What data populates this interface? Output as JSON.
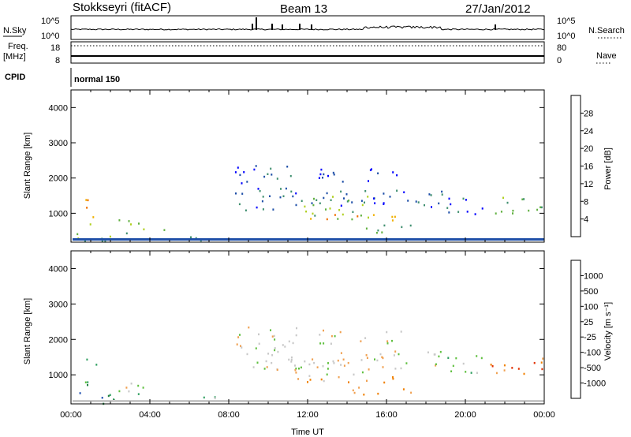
{
  "header": {
    "station": "Stokkseyri (fitACF)",
    "beam": "Beam 13",
    "date": "27/Jan/2012"
  },
  "strip": {
    "nsky_label": "N.Sky",
    "nsky_ticks": [
      "10^5",
      "10^0"
    ],
    "nsearch_label": "N.Search",
    "nsearch_ticks": [
      "10^5",
      "10^0"
    ],
    "freq_label_1": "Freq.",
    "freq_label_2": "[MHz]",
    "freq_ticks": [
      "18",
      "8"
    ],
    "nave_label": "Nave",
    "nave_ticks": [
      "80",
      "0"
    ],
    "cpid_label": "CPID",
    "cpid_value": "normal 150"
  },
  "colors": {
    "power": [
      "#0000ff",
      "#1f4fa8",
      "#3f8f6f",
      "#60b040",
      "#b0d020",
      "#f0b000",
      "#f07000",
      "#e00000"
    ],
    "velocity": [
      "#d00000",
      "#e03000",
      "#f08000",
      "#f0a050",
      "#c8c8c8",
      "#60c040",
      "#30a060",
      "#208040",
      "#2050b0",
      "#0020c0"
    ]
  },
  "chart_data": [
    {
      "type": "heatmap",
      "name": "power-panel",
      "ylabel": "Slant Range [km]",
      "yticks": [
        "1000",
        "2000",
        "3000",
        "4000"
      ],
      "xticks": [
        "00:00",
        "04:00",
        "08:00",
        "12:00",
        "16:00",
        "20:00",
        "00:00"
      ],
      "colorbar_label": "Power [dB]",
      "colorbar_ticks": [
        "4",
        "8",
        "12",
        "16",
        "20",
        "24",
        "28"
      ],
      "x_range_hours": [
        0,
        24
      ],
      "y_range_km": [
        180,
        4500
      ],
      "regions": [
        {
          "t0": 0.1,
          "t1": 2.3,
          "r0": 200,
          "r1": 600,
          "level": 3
        },
        {
          "t0": 0.7,
          "t1": 1.3,
          "r0": 700,
          "r1": 1700,
          "level": 5
        },
        {
          "t0": 2.3,
          "t1": 4.9,
          "r0": 650,
          "r1": 850,
          "level": 4
        },
        {
          "t0": 2.3,
          "t1": 4.9,
          "r0": 450,
          "r1": 580,
          "level": 3
        },
        {
          "t0": 5.0,
          "t1": 7.9,
          "r0": 250,
          "r1": 400,
          "level": 2
        },
        {
          "t0": 8.3,
          "t1": 11.5,
          "r0": 1100,
          "r1": 2400,
          "level": 1
        },
        {
          "t0": 11.0,
          "t1": 15.5,
          "r0": 850,
          "r1": 1500,
          "level": 3
        },
        {
          "t0": 11.0,
          "t1": 16.5,
          "r0": 800,
          "r1": 1000,
          "level": 5
        },
        {
          "t0": 14.0,
          "t1": 17.5,
          "r0": 450,
          "r1": 700,
          "level": 3
        },
        {
          "t0": 12.0,
          "t1": 19.0,
          "r0": 1200,
          "r1": 1700,
          "level": 1
        },
        {
          "t0": 12.5,
          "t1": 17.0,
          "r0": 1900,
          "r1": 2300,
          "level": 0
        },
        {
          "t0": 19.0,
          "t1": 21.0,
          "r0": 1000,
          "r1": 1600,
          "level": 1
        },
        {
          "t0": 21.0,
          "t1": 23.9,
          "r0": 1000,
          "r1": 1500,
          "level": 3
        }
      ]
    },
    {
      "type": "heatmap",
      "name": "velocity-panel",
      "ylabel": "Slant Range [km]",
      "yticks": [
        "1000",
        "2000",
        "3000",
        "4000"
      ],
      "xticks": [
        "00:00",
        "04:00",
        "08:00",
        "12:00",
        "16:00",
        "20:00",
        "00:00"
      ],
      "xlabel": "Time UT",
      "colorbar_label": "Velocity [m s⁻¹]",
      "colorbar_ticks": [
        "-1000",
        "-500",
        "-100",
        "-25",
        "25",
        "100",
        "500",
        "1000"
      ],
      "x_range_hours": [
        0,
        24
      ],
      "y_range_km": [
        180,
        4500
      ],
      "regions": [
        {
          "t0": 0.1,
          "t1": 2.3,
          "r0": 200,
          "r1": 600,
          "level": 7
        },
        {
          "t0": 0.7,
          "t1": 1.3,
          "r0": 700,
          "r1": 1700,
          "level": 6
        },
        {
          "t0": 2.3,
          "t1": 4.9,
          "r0": 650,
          "r1": 850,
          "level": 4
        },
        {
          "t0": 2.3,
          "t1": 4.9,
          "r0": 450,
          "r1": 580,
          "level": 5
        },
        {
          "t0": 5.0,
          "t1": 7.9,
          "r0": 250,
          "r1": 400,
          "level": 5
        },
        {
          "t0": 8.3,
          "t1": 11.5,
          "r0": 1100,
          "r1": 2400,
          "level": 4
        },
        {
          "t0": 11.0,
          "t1": 15.5,
          "r0": 850,
          "r1": 1500,
          "level": 4
        },
        {
          "t0": 11.0,
          "t1": 16.5,
          "r0": 800,
          "r1": 1000,
          "level": 2
        },
        {
          "t0": 14.0,
          "t1": 17.5,
          "r0": 450,
          "r1": 700,
          "level": 2
        },
        {
          "t0": 12.0,
          "t1": 19.0,
          "r0": 1200,
          "r1": 1700,
          "level": 4
        },
        {
          "t0": 12.5,
          "t1": 17.0,
          "r0": 1900,
          "r1": 2300,
          "level": 4
        },
        {
          "t0": 19.0,
          "t1": 21.0,
          "r0": 1000,
          "r1": 1600,
          "level": 5
        },
        {
          "t0": 21.0,
          "t1": 23.9,
          "r0": 1000,
          "r1": 1500,
          "level": 2
        }
      ]
    }
  ]
}
